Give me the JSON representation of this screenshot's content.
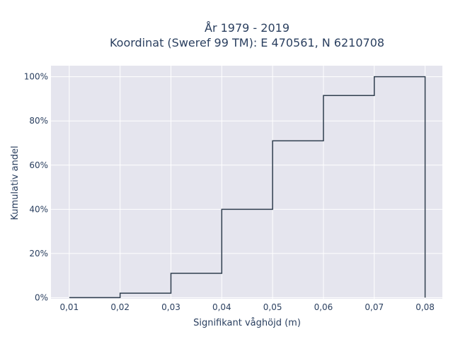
{
  "chart_data": {
    "type": "step",
    "title_line1": "År 1979 - 2019",
    "title_line2": "Koordinat (Sweref 99 TM): E 470561, N 6210708",
    "xlabel": "Signifikant våghöjd (m)",
    "ylabel": "Kumulativ andel",
    "x_ticks": [
      "0,01",
      "0,02",
      "0,03",
      "0,04",
      "0,05",
      "0,06",
      "0,07",
      "0,08"
    ],
    "y_ticks": [
      "0%",
      "20%",
      "40%",
      "60%",
      "80%",
      "100%"
    ],
    "xlim": [
      0.0064,
      0.0834
    ],
    "ylim": [
      -0.005,
      1.05
    ],
    "grid": true,
    "line_color": "#2f3e4e",
    "plot_bg": "#e5e5ee",
    "x": [
      0.01,
      0.02,
      0.03,
      0.04,
      0.05,
      0.06,
      0.07,
      0.08
    ],
    "y": [
      0.0,
      0.02,
      0.11,
      0.4,
      0.71,
      0.915,
      1.0,
      1.0
    ],
    "final_drop_to": 0.0
  }
}
